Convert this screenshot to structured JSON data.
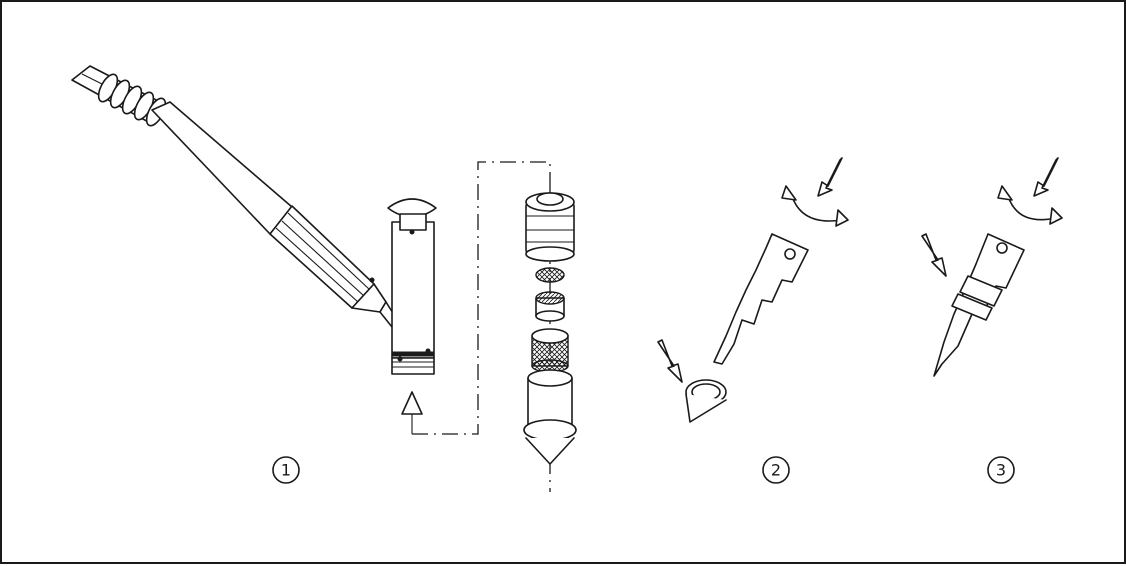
{
  "steps": [
    {
      "number": "1",
      "icon": "disassembly-illustration"
    },
    {
      "number": "2",
      "icon": "insert-cone-illustration"
    },
    {
      "number": "3",
      "icon": "tighten-illustration"
    }
  ],
  "colors": {
    "line": "#1a1a1a",
    "background": "#ffffff"
  }
}
